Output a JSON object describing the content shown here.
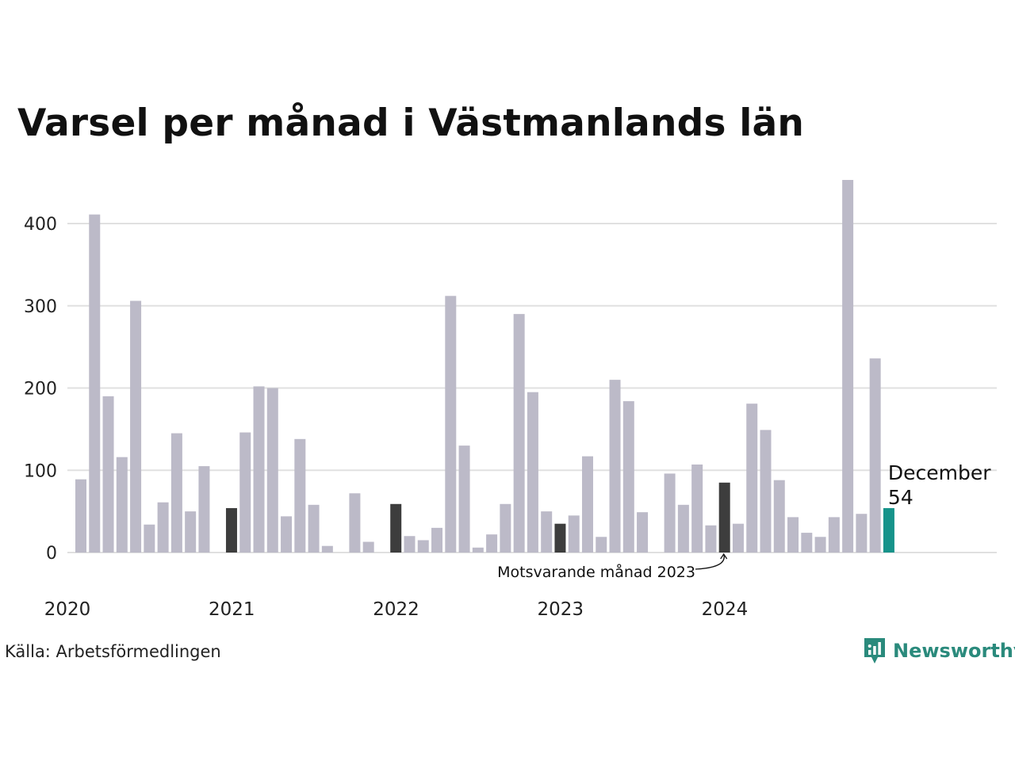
{
  "title": "Varsel per månad i Västmanlands län",
  "source": "Källa: Arbetsförmedlingen",
  "brand": {
    "name": "Newsworthy",
    "icon": "newsworthy-logo-icon"
  },
  "colors": {
    "default": "#bcbac8",
    "previous_year": "#3d3d3d",
    "current": "#16938a",
    "grid": "#e0e0e0",
    "brand": "#2a8a7c"
  },
  "chart_data": {
    "type": "bar",
    "title": "Varsel per månad i Västmanlands län",
    "ylim": [
      0,
      450
    ],
    "yticks": [
      0,
      100,
      200,
      300,
      400
    ],
    "grid": "horizontal",
    "x_year_labels": [
      "2020",
      "2021",
      "2022",
      "2023",
      "2024"
    ],
    "start": "2020-01",
    "values": [
      89,
      411,
      190,
      116,
      306,
      34,
      61,
      145,
      50,
      105,
      0,
      54,
      146,
      202,
      200,
      44,
      138,
      58,
      8,
      0,
      72,
      13,
      0,
      59,
      20,
      15,
      30,
      312,
      130,
      6,
      22,
      59,
      290,
      195,
      50,
      35,
      45,
      117,
      19,
      210,
      184,
      49,
      0,
      96,
      58,
      107,
      33,
      85,
      35,
      181,
      149,
      88,
      43,
      24,
      19,
      43,
      453,
      47,
      236,
      54
    ],
    "highlight_previous_index": 47,
    "highlight_december_indices": [
      11,
      23,
      35,
      47
    ],
    "highlight_current_index": 59,
    "current_label": {
      "month": "December",
      "value": "54"
    },
    "annotation": "Motsvarande månad 2023"
  }
}
